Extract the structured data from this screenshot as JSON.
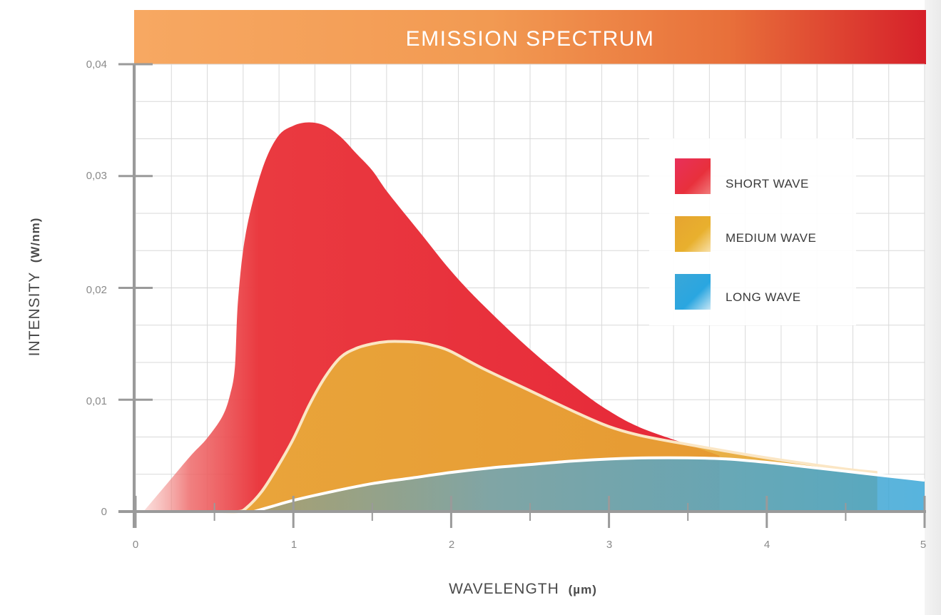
{
  "chart_data": {
    "type": "area",
    "title": "EMISSION SPECTRUM",
    "xlabel": "WAVELENGTH",
    "xlabel_unit": "(µm)",
    "ylabel": "INTENSITY",
    "ylabel_unit": "(W/nm)",
    "xlim": [
      0,
      5
    ],
    "ylim": [
      0,
      0.04
    ],
    "x_ticks": [
      0,
      1,
      2,
      3,
      4,
      5
    ],
    "x_tick_labels": [
      "0",
      "1",
      "2",
      "3",
      "4",
      "5"
    ],
    "y_ticks": [
      0,
      0.01,
      0.02,
      0.03,
      0.04
    ],
    "y_tick_labels": [
      "0",
      "0,01",
      "0,02",
      "0,03",
      "0,04"
    ],
    "grid": true,
    "legend_position": "top-right",
    "series": [
      {
        "name": "SHORT WAVE",
        "color": "#e8303c",
        "x": [
          0.05,
          0.2,
          0.35,
          0.45,
          0.55,
          0.6,
          0.63,
          0.65,
          0.7,
          0.8,
          0.9,
          1.0,
          1.1,
          1.2,
          1.3,
          1.4,
          1.5,
          1.6,
          1.8,
          2.0,
          2.2,
          2.5,
          2.8,
          3.0,
          3.2,
          3.5,
          3.6,
          3.7
        ],
        "values": [
          0.0,
          0.0025,
          0.005,
          0.0065,
          0.0085,
          0.0105,
          0.013,
          0.019,
          0.025,
          0.0305,
          0.0335,
          0.0345,
          0.0348,
          0.0345,
          0.0335,
          0.032,
          0.0305,
          0.0285,
          0.025,
          0.0215,
          0.0185,
          0.0145,
          0.011,
          0.009,
          0.0075,
          0.006,
          0.0055,
          0.005
        ]
      },
      {
        "name": "MEDIUM WAVE",
        "color": "#e8b02e",
        "x": [
          0.55,
          0.65,
          0.7,
          0.8,
          0.9,
          1.0,
          1.1,
          1.2,
          1.3,
          1.4,
          1.5,
          1.6,
          1.7,
          1.8,
          1.9,
          2.0,
          2.2,
          2.5,
          2.8,
          3.0,
          3.2,
          3.5,
          4.0,
          4.5,
          4.7
        ],
        "values": [
          0.0,
          0.0,
          0.0003,
          0.0018,
          0.004,
          0.0065,
          0.0095,
          0.012,
          0.0138,
          0.0146,
          0.015,
          0.0152,
          0.0152,
          0.0151,
          0.0148,
          0.0143,
          0.0128,
          0.0108,
          0.0088,
          0.0076,
          0.0068,
          0.006,
          0.0048,
          0.0038,
          0.0035
        ]
      },
      {
        "name": "LONG WAVE",
        "color": "#3aa7d8",
        "x": [
          0.75,
          0.85,
          1.0,
          1.25,
          1.5,
          1.75,
          2.0,
          2.25,
          2.5,
          2.75,
          3.0,
          3.25,
          3.5,
          3.75,
          4.0,
          4.25,
          4.5,
          4.75,
          5.0
        ],
        "values": [
          0.0,
          0.0004,
          0.001,
          0.0018,
          0.0025,
          0.003,
          0.0035,
          0.0039,
          0.0042,
          0.0045,
          0.0047,
          0.0048,
          0.0048,
          0.0047,
          0.0044,
          0.004,
          0.0036,
          0.0032,
          0.0028
        ]
      }
    ]
  }
}
